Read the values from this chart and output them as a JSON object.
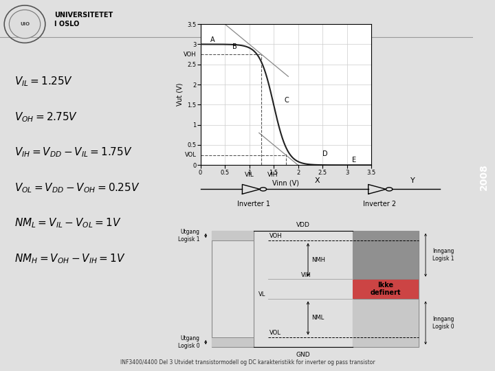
{
  "bg_color": "#ffffff",
  "year_text": "2008",
  "year_bg": "#cc0000",
  "footer_text": "INF3400/4400 Del 3 Utvidet transistormodell og DC karakteristikk for inverter og pass transistor",
  "vdd": 3.0,
  "vil": 1.25,
  "vih": 1.75,
  "voh": 2.75,
  "vol": 0.25,
  "plot_xlim": [
    0,
    3.5
  ],
  "plot_ylim": [
    0,
    3.5
  ],
  "plot_xlabel": "Vinn (V)",
  "plot_ylabel": "Vut (V)",
  "main_curve_color": "#222222",
  "tangent_color": "#888888",
  "dashed_color": "#555555",
  "grid_color": "#cccccc",
  "box_light": "#c8c8c8",
  "box_medium": "#a8a8a8",
  "box_red": "#cc4444",
  "box_darkgray": "#909090"
}
